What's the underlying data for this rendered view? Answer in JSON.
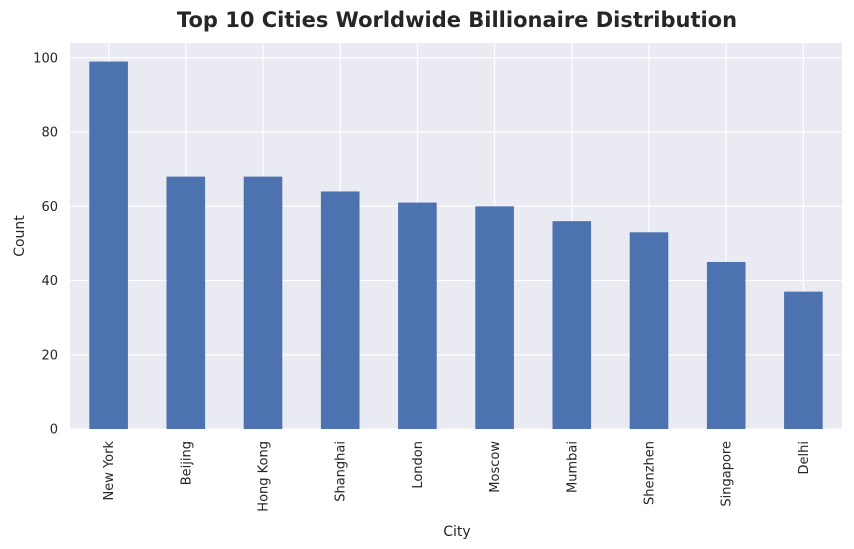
{
  "chart_data": {
    "type": "bar",
    "title": "Top 10 Cities Worldwide Billionaire Distribution",
    "xlabel": "City",
    "ylabel": "Count",
    "categories": [
      "New York",
      "Beijing",
      "Hong Kong",
      "Shanghai",
      "London",
      "Moscow",
      "Mumbai",
      "Shenzhen",
      "Singapore",
      "Delhi"
    ],
    "values": [
      99,
      68,
      68,
      64,
      61,
      60,
      56,
      53,
      45,
      37
    ],
    "ylim": [
      0,
      104
    ],
    "yticks": [
      0,
      20,
      40,
      60,
      80,
      100
    ],
    "grid": true,
    "legend": "none",
    "colors": {
      "bar": "#4c72b0",
      "plot_background": "#eaeaf2",
      "grid": "#ffffff",
      "text": "#262626"
    }
  }
}
